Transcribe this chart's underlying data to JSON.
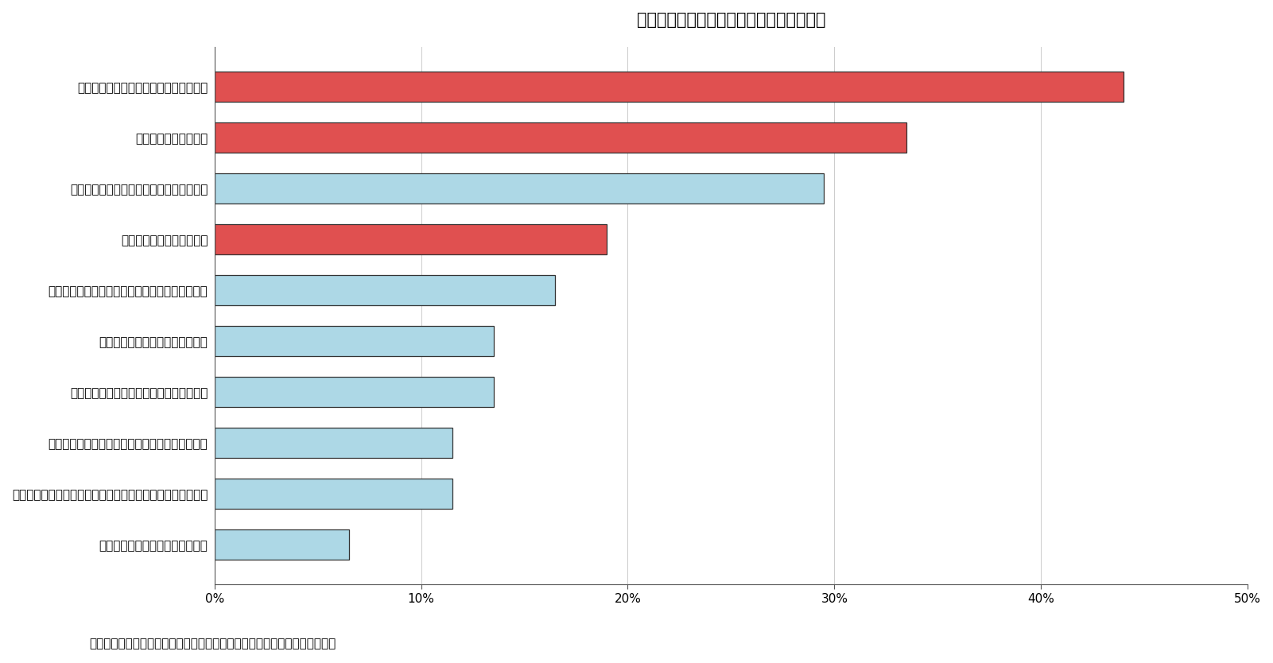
{
  "title": "図表１　分譲マンションの日常管理の問題",
  "caption": "（資料）東京都「マンション実態調査結果」よりニッセイ基礎研究所が作成",
  "categories": [
    "長期修繕計画が整備されていない",
    "管理規約等に生活ルールが含まれていないなど内容が不十分",
    "賃貸住戸が増え、マンション内秩序が保たれない",
    "不特定の人の出入りがあり、防犯面に不安",
    "修繕積立金が少なく、将来に不安",
    "居住者に高齢者が増え、バリアフリー対応が必要",
    "役員の負担が増大している",
    "防災マニュアルが未整備など防災面に不安",
    "役員のなり手がいない",
    "マンション管理に無関心な居住者が多い"
  ],
  "values": [
    6.5,
    11.5,
    11.5,
    13.5,
    13.5,
    16.5,
    19.0,
    29.5,
    33.5,
    44.0
  ],
  "colors": [
    "#ADD8E6",
    "#ADD8E6",
    "#ADD8E6",
    "#ADD8E6",
    "#ADD8E6",
    "#ADD8E6",
    "#E05050",
    "#ADD8E6",
    "#E05050",
    "#E05050"
  ],
  "bar_edge_color": "#333333",
  "xlim": [
    0,
    50
  ],
  "xtick_values": [
    0,
    10,
    20,
    30,
    40,
    50
  ],
  "xtick_labels": [
    "0%",
    "10%",
    "20%",
    "30%",
    "40%",
    "50%"
  ],
  "background_color": "#ffffff",
  "title_fontsize": 15,
  "label_fontsize": 11,
  "tick_fontsize": 11,
  "caption_fontsize": 11
}
